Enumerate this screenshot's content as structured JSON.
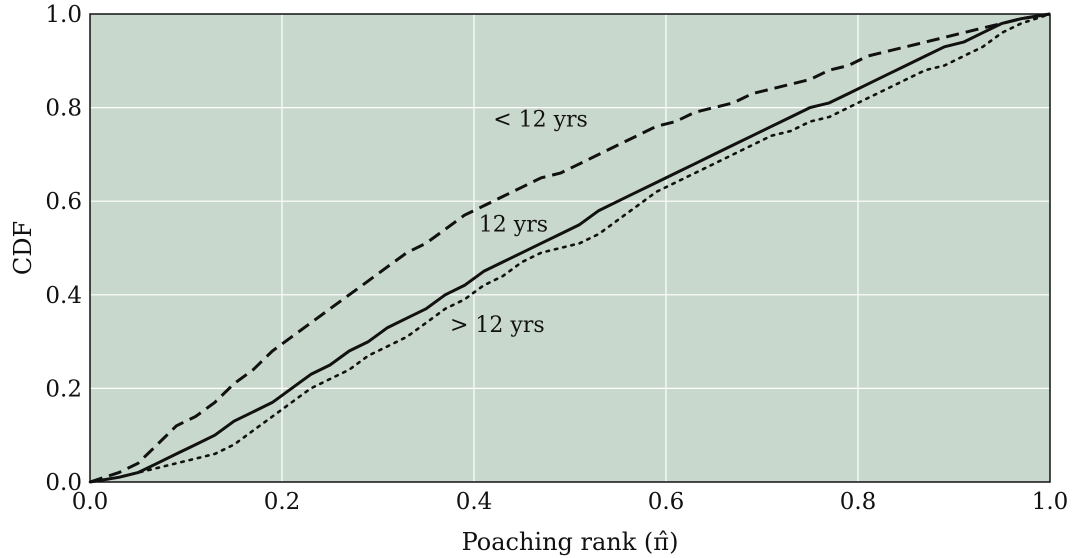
{
  "chart_data": {
    "type": "line",
    "title": "",
    "xlabel": "Poaching rank (π̂)",
    "ylabel": "CDF",
    "xlim": [
      0.0,
      1.0
    ],
    "ylim": [
      0.0,
      1.0
    ],
    "xticks": [
      "0.0",
      "0.2",
      "0.4",
      "0.6",
      "0.8",
      "1.0"
    ],
    "yticks": [
      "0.0",
      "0.2",
      "0.4",
      "0.6",
      "0.8",
      "1.0"
    ],
    "grid": true,
    "background": "#c9d8cc",
    "grid_color": "#ffffff",
    "series": [
      {
        "name": "< 12 yrs",
        "style": "dashed",
        "x": [
          0.0,
          0.03,
          0.05,
          0.07,
          0.09,
          0.11,
          0.13,
          0.15,
          0.17,
          0.19,
          0.21,
          0.23,
          0.25,
          0.27,
          0.29,
          0.31,
          0.33,
          0.35,
          0.37,
          0.39,
          0.41,
          0.43,
          0.45,
          0.47,
          0.49,
          0.51,
          0.53,
          0.55,
          0.57,
          0.59,
          0.61,
          0.63,
          0.65,
          0.67,
          0.69,
          0.71,
          0.73,
          0.75,
          0.77,
          0.79,
          0.81,
          0.83,
          0.85,
          0.87,
          0.89,
          0.91,
          0.93,
          0.95,
          0.97,
          1.0
        ],
        "y": [
          0.0,
          0.02,
          0.04,
          0.08,
          0.12,
          0.14,
          0.17,
          0.21,
          0.24,
          0.28,
          0.31,
          0.34,
          0.37,
          0.4,
          0.43,
          0.46,
          0.49,
          0.51,
          0.54,
          0.57,
          0.59,
          0.61,
          0.63,
          0.65,
          0.66,
          0.68,
          0.7,
          0.72,
          0.74,
          0.76,
          0.77,
          0.79,
          0.8,
          0.81,
          0.83,
          0.84,
          0.85,
          0.86,
          0.88,
          0.89,
          0.91,
          0.92,
          0.93,
          0.94,
          0.95,
          0.96,
          0.97,
          0.98,
          0.99,
          1.0
        ]
      },
      {
        "name": "12 yrs",
        "style": "solid",
        "x": [
          0.0,
          0.03,
          0.05,
          0.07,
          0.09,
          0.11,
          0.13,
          0.15,
          0.17,
          0.19,
          0.21,
          0.23,
          0.25,
          0.27,
          0.29,
          0.31,
          0.33,
          0.35,
          0.37,
          0.39,
          0.41,
          0.43,
          0.45,
          0.47,
          0.49,
          0.51,
          0.53,
          0.55,
          0.57,
          0.59,
          0.61,
          0.63,
          0.65,
          0.67,
          0.69,
          0.71,
          0.73,
          0.75,
          0.77,
          0.79,
          0.81,
          0.83,
          0.85,
          0.87,
          0.89,
          0.91,
          0.93,
          0.95,
          0.97,
          1.0
        ],
        "y": [
          0.0,
          0.01,
          0.02,
          0.04,
          0.06,
          0.08,
          0.1,
          0.13,
          0.15,
          0.17,
          0.2,
          0.23,
          0.25,
          0.28,
          0.3,
          0.33,
          0.35,
          0.37,
          0.4,
          0.42,
          0.45,
          0.47,
          0.49,
          0.51,
          0.53,
          0.55,
          0.58,
          0.6,
          0.62,
          0.64,
          0.66,
          0.68,
          0.7,
          0.72,
          0.74,
          0.76,
          0.78,
          0.8,
          0.81,
          0.83,
          0.85,
          0.87,
          0.89,
          0.91,
          0.93,
          0.94,
          0.96,
          0.98,
          0.99,
          1.0
        ]
      },
      {
        "name": "> 12 yrs",
        "style": "dotted",
        "x": [
          0.0,
          0.03,
          0.05,
          0.07,
          0.09,
          0.11,
          0.13,
          0.15,
          0.17,
          0.19,
          0.21,
          0.23,
          0.25,
          0.27,
          0.29,
          0.31,
          0.33,
          0.35,
          0.37,
          0.39,
          0.41,
          0.43,
          0.45,
          0.47,
          0.49,
          0.51,
          0.53,
          0.55,
          0.57,
          0.59,
          0.61,
          0.63,
          0.65,
          0.67,
          0.69,
          0.71,
          0.73,
          0.75,
          0.77,
          0.79,
          0.81,
          0.83,
          0.85,
          0.87,
          0.89,
          0.91,
          0.93,
          0.95,
          0.97,
          1.0
        ],
        "y": [
          0.0,
          0.01,
          0.02,
          0.03,
          0.04,
          0.05,
          0.06,
          0.08,
          0.11,
          0.14,
          0.17,
          0.2,
          0.22,
          0.24,
          0.27,
          0.29,
          0.31,
          0.34,
          0.37,
          0.39,
          0.42,
          0.44,
          0.47,
          0.49,
          0.5,
          0.51,
          0.53,
          0.56,
          0.59,
          0.62,
          0.64,
          0.66,
          0.68,
          0.7,
          0.72,
          0.74,
          0.75,
          0.77,
          0.78,
          0.8,
          0.82,
          0.84,
          0.86,
          0.88,
          0.89,
          0.91,
          0.93,
          0.96,
          0.98,
          1.0
        ]
      }
    ],
    "annotations": [
      {
        "text": "< 12 yrs",
        "x": 0.42,
        "y": 0.76
      },
      {
        "text": "12 yrs",
        "x": 0.405,
        "y": 0.535
      },
      {
        "text": "> 12 yrs",
        "x": 0.375,
        "y": 0.32
      }
    ]
  }
}
